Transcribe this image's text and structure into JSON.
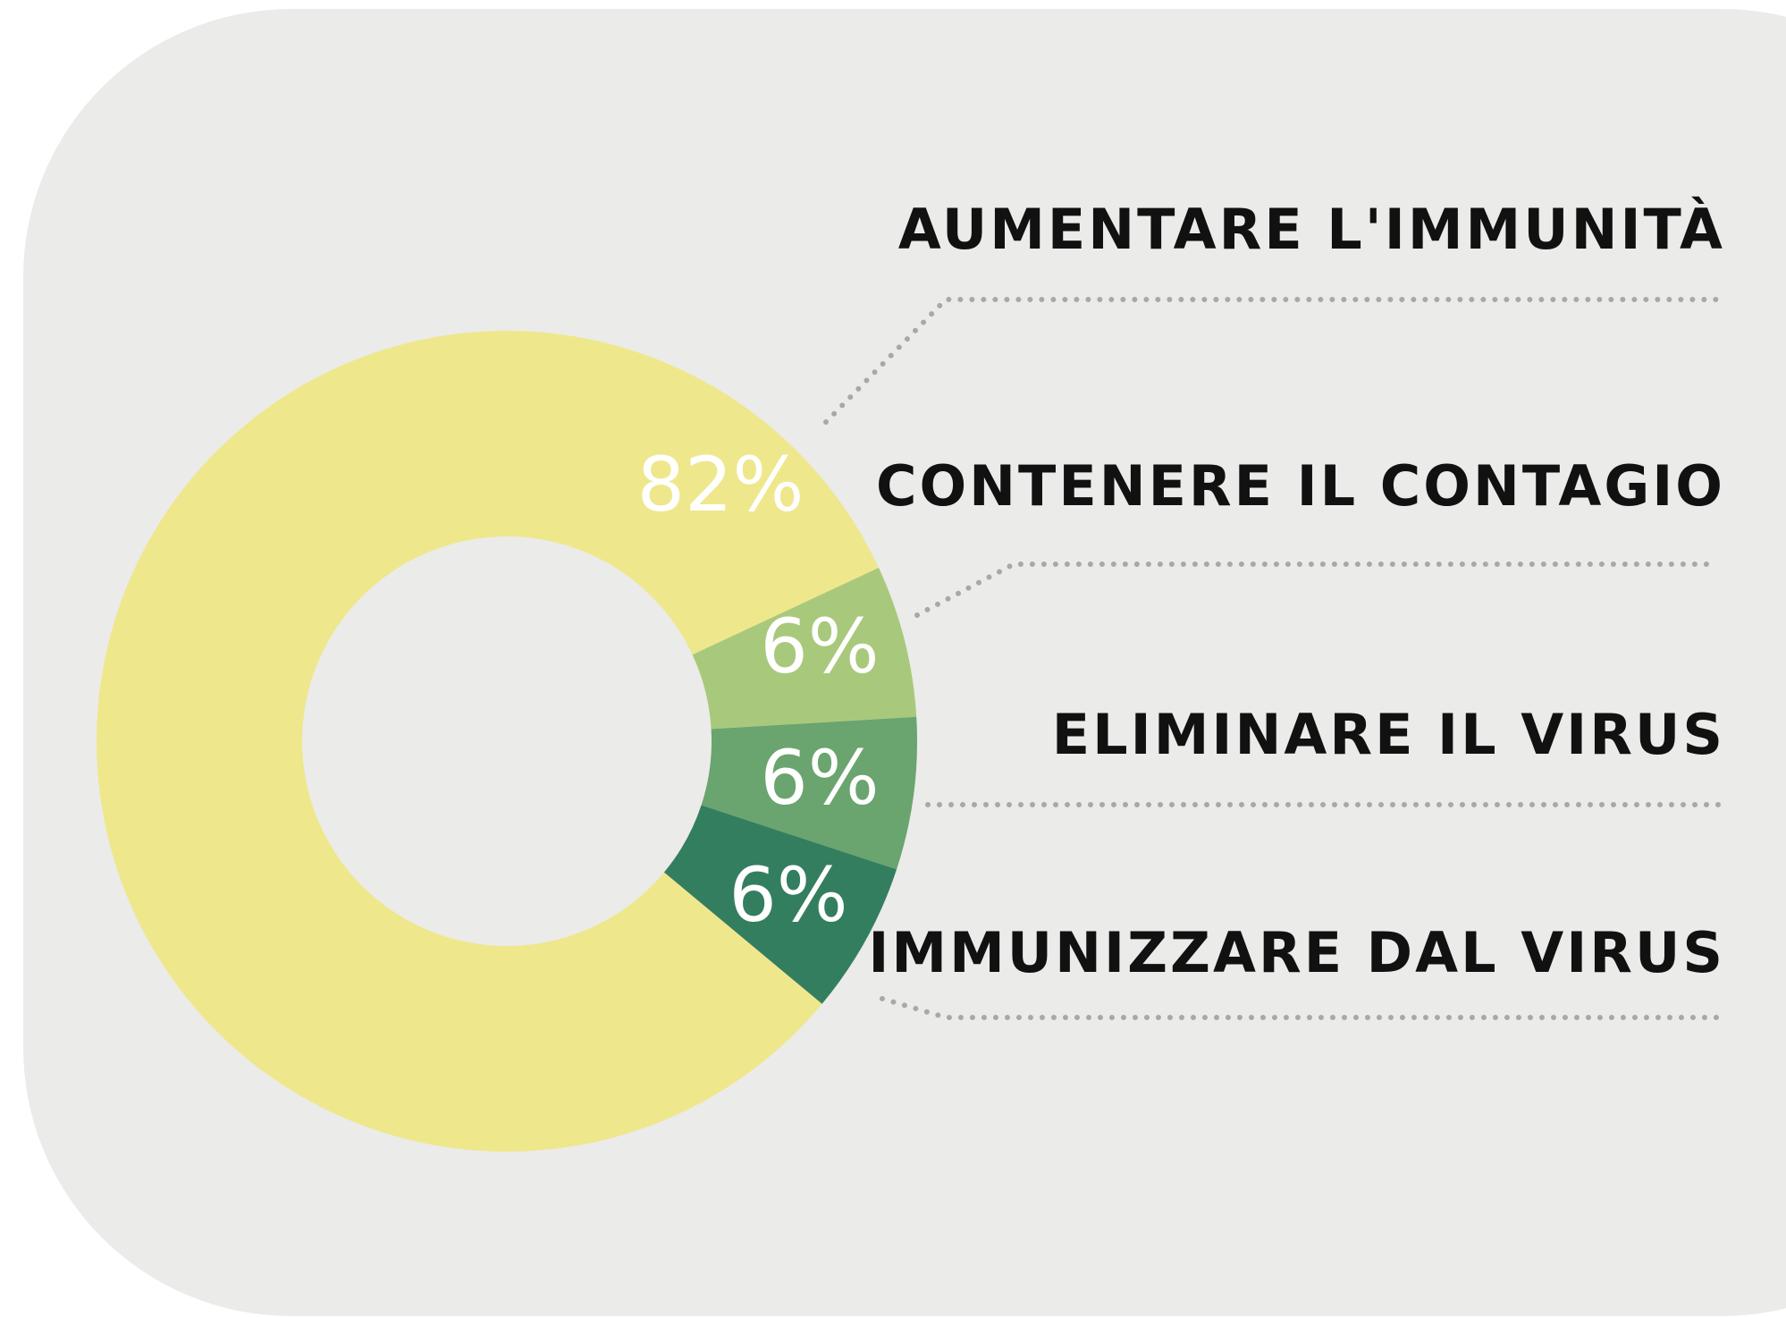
{
  "chart_data": {
    "type": "donut",
    "categories": [
      "AUMENTARE L'IMMUNITÀ",
      "CONTENERE IL CONTAGIO",
      "ELIMINARE IL VIRUS",
      "IMMUNIZZARE DAL VIRUS"
    ],
    "values": [
      82,
      6,
      6,
      6
    ],
    "value_labels": [
      "82%",
      "6%",
      "6%",
      "6%"
    ],
    "colors": [
      "#efe78c",
      "#a8c97c",
      "#6aa46e",
      "#347e60"
    ]
  }
}
